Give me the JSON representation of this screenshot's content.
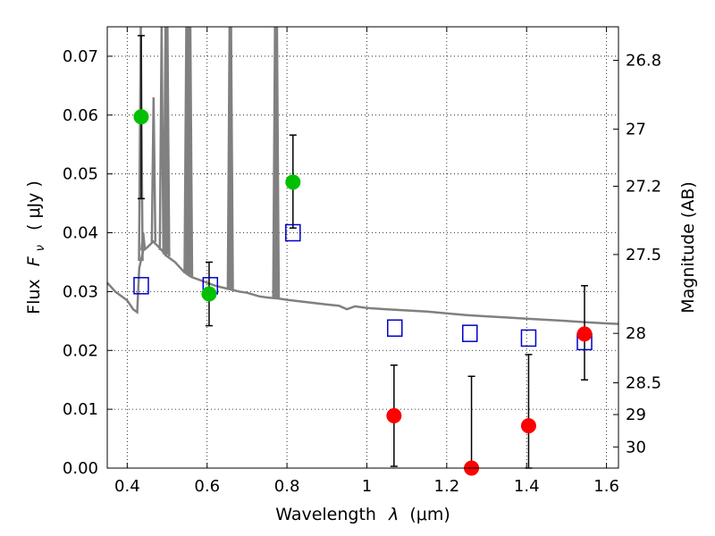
{
  "chart_data": {
    "type": "scatter",
    "title": "",
    "xlabel": "Wavelength",
    "xlabel_symbol": "λ",
    "xlabel_unit": "(μm)",
    "ylabel": "Flux",
    "ylabel_symbol": "F",
    "ylabel_subscript": "ν",
    "ylabel_unit": "( μJy )",
    "ylabel_right": "Magnitude (AB)",
    "xlim": [
      0.35,
      1.63
    ],
    "ylim": [
      0.0,
      0.075
    ],
    "grid": true,
    "x_ticks": [
      0.4,
      0.6,
      0.8,
      1.0,
      1.2,
      1.4,
      1.6
    ],
    "x_tick_labels": [
      "0.4",
      "0.6",
      "0.8",
      "1",
      "1.2",
      "1.4",
      "1.6"
    ],
    "y_ticks": [
      0.0,
      0.01,
      0.02,
      0.03,
      0.04,
      0.05,
      0.06,
      0.07
    ],
    "y_tick_labels": [
      "0.00",
      "0.01",
      "0.02",
      "0.03",
      "0.04",
      "0.05",
      "0.06",
      "0.07"
    ],
    "right_ticks": [
      {
        "label": "26.8",
        "flux": 0.0693
      },
      {
        "label": "27",
        "flux": 0.0576
      },
      {
        "label": "27.2",
        "flux": 0.0479
      },
      {
        "label": "27.5",
        "flux": 0.0363
      },
      {
        "label": "28",
        "flux": 0.0229
      },
      {
        "label": "28.5",
        "flux": 0.0145
      },
      {
        "label": "29",
        "flux": 0.0091
      },
      {
        "label": "30",
        "flux": 0.0036
      }
    ],
    "model_spectrum": {
      "color": "#808080",
      "points": [
        [
          0.35,
          0.0315
        ],
        [
          0.37,
          0.03
        ],
        [
          0.4,
          0.0285
        ],
        [
          0.415,
          0.027
        ],
        [
          0.425,
          0.0265
        ],
        [
          0.43,
          0.034
        ],
        [
          0.44,
          0.037
        ],
        [
          0.45,
          0.0375
        ],
        [
          0.465,
          0.0385
        ],
        [
          0.48,
          0.0375
        ],
        [
          0.5,
          0.036
        ],
        [
          0.52,
          0.035
        ],
        [
          0.54,
          0.0335
        ],
        [
          0.56,
          0.0325
        ],
        [
          0.58,
          0.032
        ],
        [
          0.6,
          0.0315
        ],
        [
          0.62,
          0.031
        ],
        [
          0.65,
          0.0305
        ],
        [
          0.68,
          0.03
        ],
        [
          0.7,
          0.0298
        ],
        [
          0.73,
          0.0292
        ],
        [
          0.75,
          0.029
        ],
        [
          0.78,
          0.0288
        ],
        [
          0.8,
          0.0286
        ],
        [
          0.85,
          0.0282
        ],
        [
          0.9,
          0.0278
        ],
        [
          0.93,
          0.0276
        ],
        [
          0.95,
          0.027
        ],
        [
          0.97,
          0.0275
        ],
        [
          1.0,
          0.0272
        ],
        [
          1.05,
          0.027
        ],
        [
          1.1,
          0.0268
        ],
        [
          1.15,
          0.0266
        ],
        [
          1.2,
          0.0263
        ],
        [
          1.25,
          0.026
        ],
        [
          1.3,
          0.0258
        ],
        [
          1.35,
          0.0256
        ],
        [
          1.4,
          0.0254
        ],
        [
          1.45,
          0.0252
        ],
        [
          1.5,
          0.025
        ],
        [
          1.55,
          0.0248
        ],
        [
          1.6,
          0.0246
        ],
        [
          1.63,
          0.0245
        ]
      ],
      "emission_lines": [
        {
          "x": 0.434,
          "peak": 0.075
        },
        {
          "x": 0.44,
          "peak": 0.04
        },
        {
          "x": 0.4861,
          "peak": 0.075
        },
        {
          "x": 0.466,
          "peak": 0.063
        },
        {
          "x": 0.4959,
          "peak": 0.075
        },
        {
          "x": 0.5007,
          "peak": 0.075
        },
        {
          "x": 0.548,
          "peak": 0.075
        },
        {
          "x": 0.553,
          "peak": 0.075
        },
        {
          "x": 0.558,
          "peak": 0.075
        },
        {
          "x": 0.6563,
          "peak": 0.075
        },
        {
          "x": 0.66,
          "peak": 0.075
        },
        {
          "x": 0.77,
          "peak": 0.075
        },
        {
          "x": 0.775,
          "peak": 0.075
        }
      ]
    },
    "series": [
      {
        "marker": "square-open",
        "color": "#0000cc",
        "points": [
          {
            "x": 0.435,
            "y": 0.031
          },
          {
            "x": 0.608,
            "y": 0.031
          },
          {
            "x": 0.815,
            "y": 0.04
          },
          {
            "x": 1.07,
            "y": 0.0238
          },
          {
            "x": 1.258,
            "y": 0.0229
          },
          {
            "x": 1.405,
            "y": 0.0221
          },
          {
            "x": 1.545,
            "y": 0.0215
          }
        ]
      },
      {
        "marker": "circle",
        "color": "#00c000",
        "points": [
          {
            "x": 0.435,
            "y": 0.0597,
            "err_low": 0.0458,
            "err_high": 0.0735
          },
          {
            "x": 0.605,
            "y": 0.0296,
            "err_low": 0.0242,
            "err_high": 0.035
          },
          {
            "x": 0.815,
            "y": 0.0486,
            "err_low": 0.0408,
            "err_high": 0.0566
          }
        ]
      },
      {
        "marker": "circle",
        "color": "#ff0000",
        "points": [
          {
            "x": 1.068,
            "y": 0.0089,
            "err_low": 0.0003,
            "err_high": 0.0175
          },
          {
            "x": 1.262,
            "y": 0.0,
            "err_low": 0.0,
            "err_high": 0.0156
          },
          {
            "x": 1.405,
            "y": 0.0072,
            "err_low": 0.0,
            "err_high": 0.0193
          },
          {
            "x": 1.545,
            "y": 0.0228,
            "err_low": 0.015,
            "err_high": 0.031
          }
        ]
      }
    ]
  }
}
